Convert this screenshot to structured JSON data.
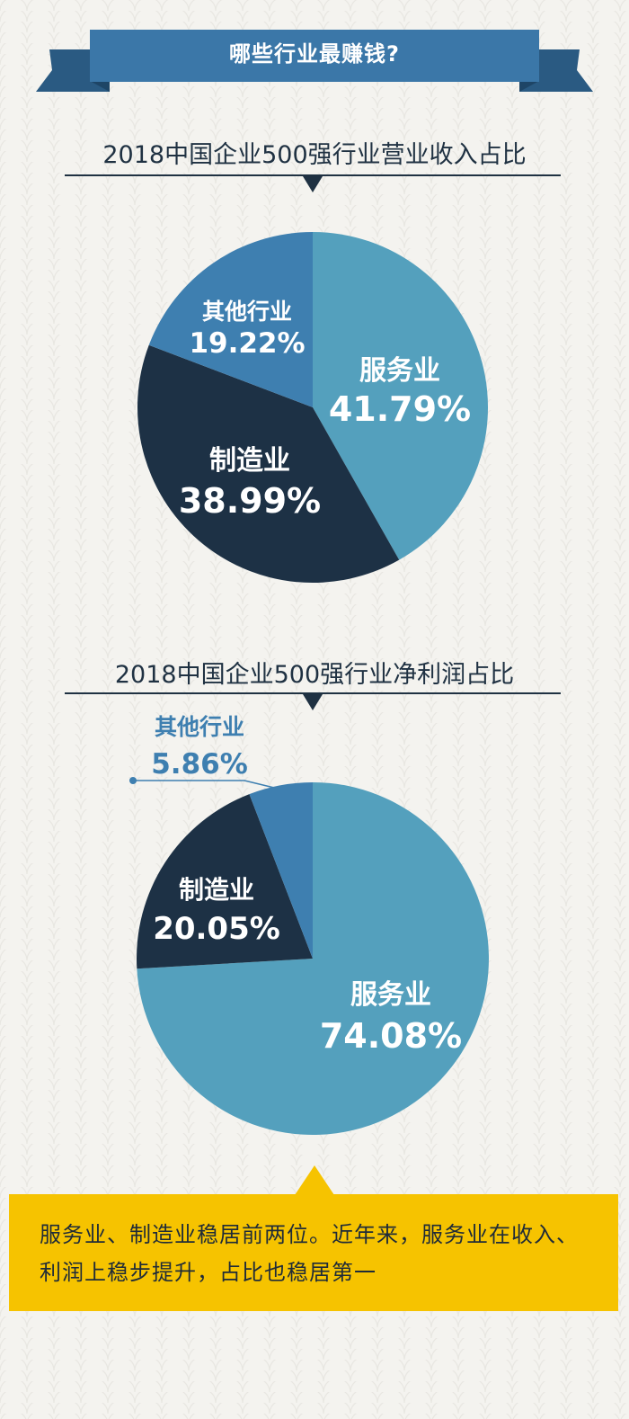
{
  "banner": {
    "title": "哪些行业最赚钱?"
  },
  "colors": {
    "banner": "#3b77a8",
    "banner_dark": "#2a5a82",
    "service": "#54a0bd",
    "manufacturing": "#1d3145",
    "other": "#3e7fb0",
    "title_text": "#1f3142",
    "note_bg": "#f6c300"
  },
  "chart_data": [
    {
      "type": "pie",
      "title": "2018中国企业500强行业营业收入占比",
      "slices": [
        {
          "name": "服务业",
          "value": 41.79,
          "label": "41.79%",
          "color": "#54a0bd"
        },
        {
          "name": "制造业",
          "value": 38.99,
          "label": "38.99%",
          "color": "#1d3145"
        },
        {
          "name": "其他行业",
          "value": 19.22,
          "label": "19.22%",
          "color": "#3e7fb0"
        }
      ]
    },
    {
      "type": "pie",
      "title": "2018中国企业500强行业净利润占比",
      "slices": [
        {
          "name": "服务业",
          "value": 74.08,
          "label": "74.08%",
          "color": "#54a0bd"
        },
        {
          "name": "制造业",
          "value": 20.05,
          "label": "20.05%",
          "color": "#1d3145"
        },
        {
          "name": "其他行业",
          "value": 5.86,
          "label": "5.86%",
          "color": "#3e7fb0"
        }
      ]
    }
  ],
  "note": {
    "text": "服务业、制造业稳居前两位。近年来，服务业在收入、利润上稳步提升，占比也稳居第一"
  }
}
